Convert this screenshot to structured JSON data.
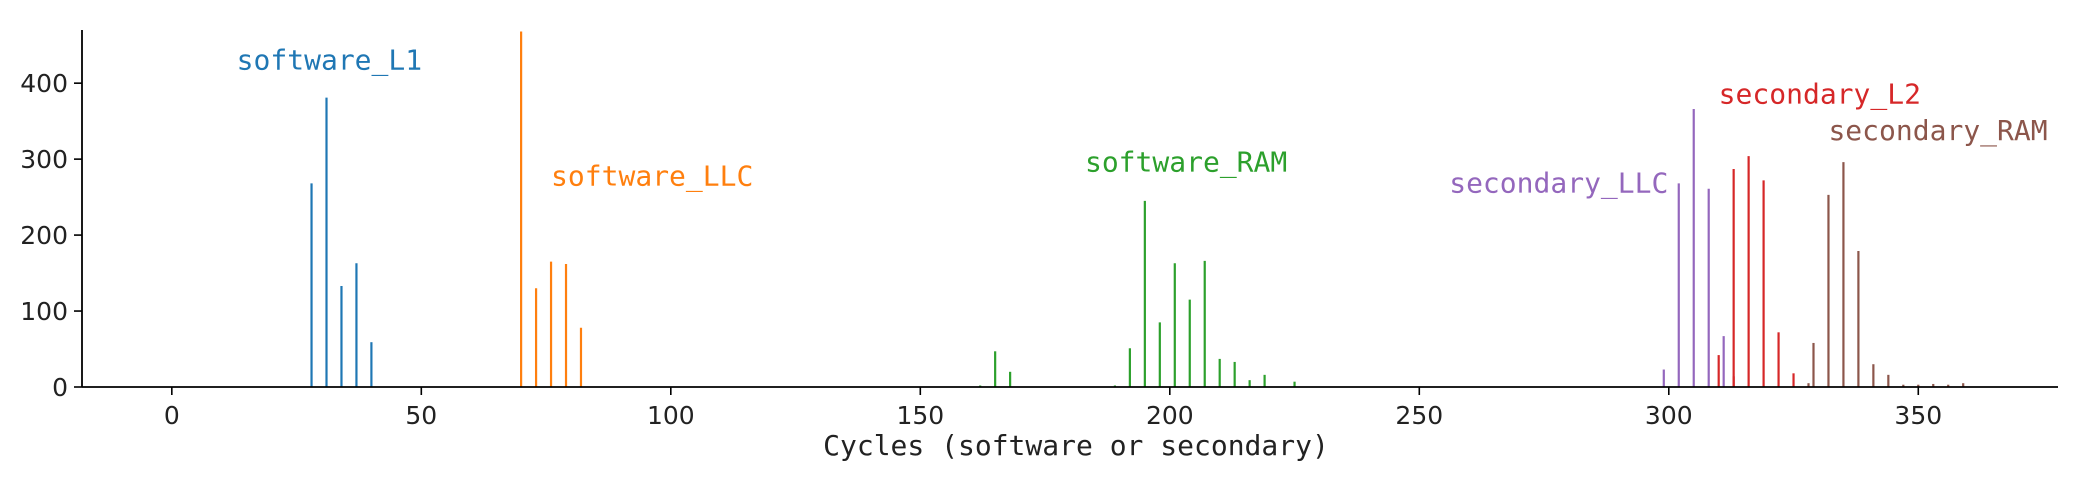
{
  "chart_data": {
    "type": "bar",
    "title": "",
    "xlabel": "Cycles (software or secondary)",
    "ylabel": "",
    "xlim": [
      -18,
      378
    ],
    "ylim": [
      0,
      470
    ],
    "xticks": [
      0,
      50,
      100,
      150,
      200,
      250,
      300,
      350
    ],
    "yticks": [
      0,
      100,
      200,
      300,
      400
    ],
    "grid": false,
    "series": [
      {
        "name": "software_L1",
        "color": "#1f77b4",
        "points": [
          [
            28,
            268
          ],
          [
            31,
            381
          ],
          [
            34,
            133
          ],
          [
            37,
            163
          ],
          [
            40,
            59
          ]
        ]
      },
      {
        "name": "software_LLC",
        "color": "#ff7f0e",
        "points": [
          [
            70,
            468
          ],
          [
            73,
            130
          ],
          [
            76,
            165
          ],
          [
            79,
            162
          ],
          [
            82,
            78
          ]
        ]
      },
      {
        "name": "software_RAM",
        "color": "#2ca02c",
        "points": [
          [
            162,
            2
          ],
          [
            165,
            47
          ],
          [
            168,
            20
          ],
          [
            189,
            2
          ],
          [
            192,
            51
          ],
          [
            195,
            245
          ],
          [
            198,
            85
          ],
          [
            201,
            163
          ],
          [
            204,
            115
          ],
          [
            207,
            166
          ],
          [
            210,
            37
          ],
          [
            213,
            33
          ],
          [
            216,
            9
          ],
          [
            219,
            16
          ],
          [
            225,
            7
          ]
        ]
      },
      {
        "name": "secondary_LLC",
        "color": "#9467bd",
        "points": [
          [
            299,
            23
          ],
          [
            302,
            268
          ],
          [
            305,
            366
          ],
          [
            308,
            261
          ],
          [
            311,
            67
          ]
        ]
      },
      {
        "name": "secondary_L2",
        "color": "#d62728",
        "points": [
          [
            310,
            42
          ],
          [
            313,
            287
          ],
          [
            316,
            304
          ],
          [
            319,
            272
          ],
          [
            322,
            72
          ],
          [
            313,
            14
          ],
          [
            325,
            18
          ]
        ]
      },
      {
        "name": "secondary_RAM",
        "color": "#8c564b",
        "points": [
          [
            328,
            5
          ],
          [
            329,
            58
          ],
          [
            332,
            253
          ],
          [
            335,
            296
          ],
          [
            338,
            179
          ],
          [
            341,
            30
          ],
          [
            344,
            16
          ],
          [
            347,
            3
          ],
          [
            350,
            3
          ],
          [
            353,
            4
          ],
          [
            356,
            3
          ],
          [
            359,
            5
          ]
        ]
      }
    ],
    "annotations": [
      {
        "text": "software_L1",
        "series": 0,
        "x": 13,
        "y": 418
      },
      {
        "text": "software_LLC",
        "series": 1,
        "x": 76,
        "y": 265
      },
      {
        "text": "software_RAM",
        "series": 2,
        "x": 183,
        "y": 284
      },
      {
        "text": "secondary_LLC",
        "series": 3,
        "x": 256,
        "y": 256
      },
      {
        "text": "secondary_L2",
        "series": 4,
        "x": 310,
        "y": 373
      },
      {
        "text": "secondary_RAM",
        "series": 5,
        "x": 332,
        "y": 325
      }
    ]
  }
}
